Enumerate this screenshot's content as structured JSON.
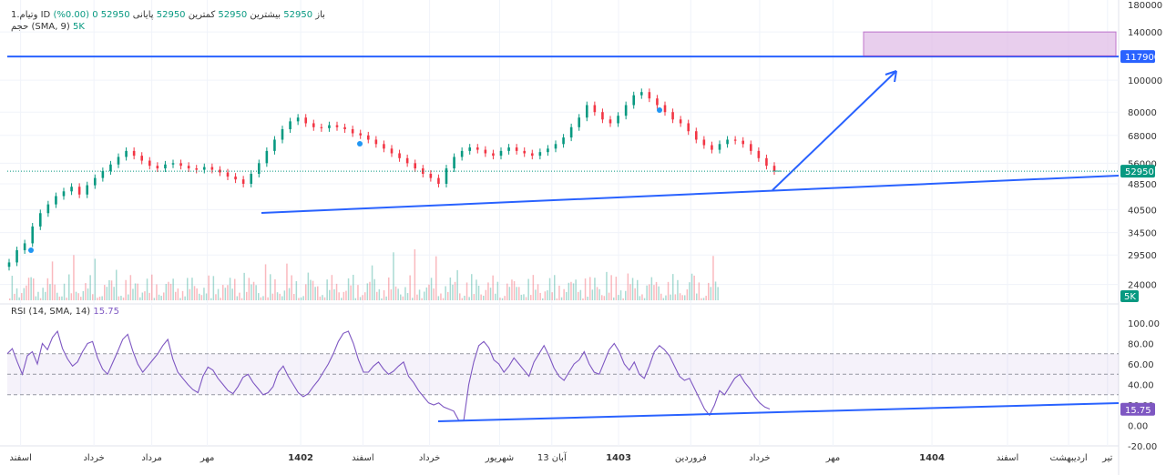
{
  "legend": {
    "symbol": "1.وتیام ID",
    "tf": "باز",
    "open": "52950",
    "high_label": "بیشترین",
    "high": "52950",
    "low_label": "کمترین",
    "low": "52950",
    "close_label": "پایانی",
    "close": "52950",
    "change": "0 (0.00%)",
    "volume_label": "حجم (SMA, 9)",
    "volume_value": "5K",
    "rsi_label": "RSI (14, SMA, 14)",
    "rsi_value": "15.75"
  },
  "colors": {
    "up": "#089981",
    "down": "#f23645",
    "trend": "#2962ff",
    "rsi": "#7e57c2",
    "target_box": "#e1bee7"
  },
  "chart_data": [
    {
      "type": "candlestick",
      "panel": "price",
      "y_ticks": [
        "180000",
        "140000",
        "117900",
        "100000",
        "80000",
        "68000",
        "56000",
        "52950",
        "48500",
        "40500",
        "34500",
        "29500",
        "24000"
      ],
      "y_scale": "log",
      "price_ticks_values": [
        180000,
        140000,
        100000,
        80000,
        68000,
        56000,
        48500,
        40500,
        34500,
        29500
      ],
      "last_price": 52950,
      "last_price_tag": "52950",
      "horizontal_level": 117900,
      "horizontal_level_tag": "117900",
      "target_zone": {
        "low": 118500,
        "high": 140000
      },
      "x_ticks": [
        "اسفند",
        "خرداد",
        "مرداد",
        "مهر",
        "1402",
        "اسفند",
        "خرداد",
        "شهریور",
        "13 آبان",
        "1403",
        "فروردین",
        "خرداد",
        "مهر",
        "1404",
        "اسفند",
        "اردیبهشت",
        "تیر"
      ],
      "x_tick_frac": [
        0.012,
        0.078,
        0.13,
        0.18,
        0.264,
        0.32,
        0.38,
        0.443,
        0.49,
        0.55,
        0.615,
        0.677,
        0.743,
        0.832,
        0.9,
        0.955,
        0.99
      ],
      "series_close": [
        28000,
        30500,
        32000,
        36000,
        39500,
        42000,
        44500,
        46000,
        47500,
        45000,
        48000,
        50500,
        53000,
        55500,
        58500,
        61000,
        59000,
        57000,
        55000,
        54000,
        55500,
        56000,
        55000,
        54000,
        53500,
        54500,
        53500,
        52500,
        51000,
        50000,
        48500,
        52000,
        56000,
        61000,
        66000,
        71000,
        75000,
        77000,
        74000,
        72000,
        71500,
        73000,
        72000,
        71000,
        69000,
        68000,
        66000,
        64000,
        62000,
        60000,
        58000,
        56000,
        54000,
        52000,
        50500,
        48500,
        54000,
        58500,
        61000,
        62500,
        61500,
        60000,
        59000,
        61000,
        62500,
        61000,
        60000,
        59000,
        60500,
        62000,
        64000,
        67000,
        72000,
        77000,
        84000,
        80000,
        76000,
        74000,
        78000,
        84000,
        90000,
        92000,
        88000,
        84000,
        80000,
        76000,
        74000,
        70000,
        66000,
        63500,
        61500,
        64000,
        66000,
        65500,
        64000,
        61000,
        58000,
        55000,
        53000
      ]
    },
    {
      "type": "bar",
      "panel": "volume",
      "name": "حجم",
      "last_value_tag": "5K"
    },
    {
      "type": "line",
      "panel": "rsi",
      "name": "RSI",
      "y_ticks": [
        "100.00",
        "80.00",
        "60.00",
        "40.00",
        "20.00",
        "0.00",
        "-20.00"
      ],
      "ylim": [
        -20,
        100
      ],
      "bands": [
        70,
        50,
        30
      ],
      "last_value_tag": "15.75",
      "values": [
        70,
        75,
        62,
        50,
        68,
        72,
        60,
        80,
        74,
        86,
        92,
        75,
        65,
        58,
        62,
        72,
        80,
        82,
        66,
        55,
        50,
        61,
        72,
        84,
        89,
        73,
        60,
        52,
        58,
        64,
        70,
        78,
        84,
        65,
        52,
        46,
        40,
        35,
        32,
        48,
        57,
        54,
        46,
        40,
        34,
        31,
        38,
        47,
        50,
        42,
        36,
        30,
        32,
        38,
        52,
        58,
        48,
        40,
        32,
        28,
        31,
        38,
        44,
        52,
        60,
        70,
        82,
        90,
        92,
        80,
        64,
        52,
        52,
        58,
        62,
        55,
        50,
        53,
        58,
        62,
        48,
        42,
        34,
        28,
        22,
        20,
        22,
        18,
        16,
        14,
        5,
        5,
        40,
        62,
        78,
        82,
        76,
        64,
        60,
        52,
        58,
        66,
        60,
        54,
        48,
        62,
        70,
        78,
        68,
        56,
        48,
        44,
        52,
        60,
        64,
        72,
        60,
        52,
        50,
        62,
        74,
        80,
        72,
        60,
        54,
        62,
        50,
        46,
        58,
        72,
        78,
        74,
        68,
        58,
        48,
        44,
        46,
        36,
        26,
        16,
        10,
        20,
        34,
        30,
        38,
        46,
        50,
        42,
        36,
        28,
        22,
        18,
        16
      ]
    }
  ]
}
